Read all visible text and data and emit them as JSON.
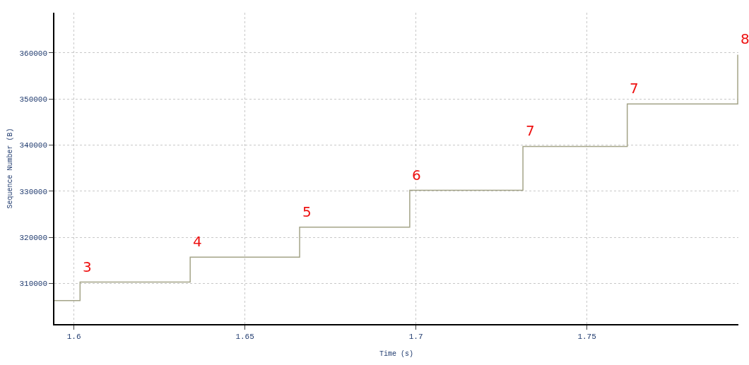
{
  "chart_data": {
    "type": "step",
    "xlabel": "Time (s)",
    "ylabel": "Sequence Number (B)",
    "x": [
      1.5943,
      1.6018,
      1.634,
      1.666,
      1.6982,
      1.7313,
      1.7618,
      1.7941
    ],
    "series": [
      {
        "color": "#a4a488",
        "values": [
          306300,
          310300,
          315700,
          322200,
          330200,
          339700,
          348900,
          359600
        ]
      }
    ],
    "xlim": [
      1.5943,
      1.7943
    ],
    "xticks": [
      1.6,
      1.65,
      1.7,
      1.75
    ],
    "ylim": [
      301200,
      368700
    ],
    "yticks": [
      310000,
      320000,
      330000,
      340000,
      350000,
      360000
    ],
    "grid": true,
    "legend": false,
    "annotations": [
      {
        "text": "3",
        "x": 1.6018,
        "y": 310300
      },
      {
        "text": "4",
        "x": 1.634,
        "y": 315700
      },
      {
        "text": "5",
        "x": 1.666,
        "y": 322200
      },
      {
        "text": "6",
        "x": 1.6982,
        "y": 330200
      },
      {
        "text": "7",
        "x": 1.7313,
        "y": 339700
      },
      {
        "text": "7",
        "x": 1.7618,
        "y": 348900
      },
      {
        "text": "8",
        "x": 1.7941,
        "y": 359600
      }
    ]
  }
}
